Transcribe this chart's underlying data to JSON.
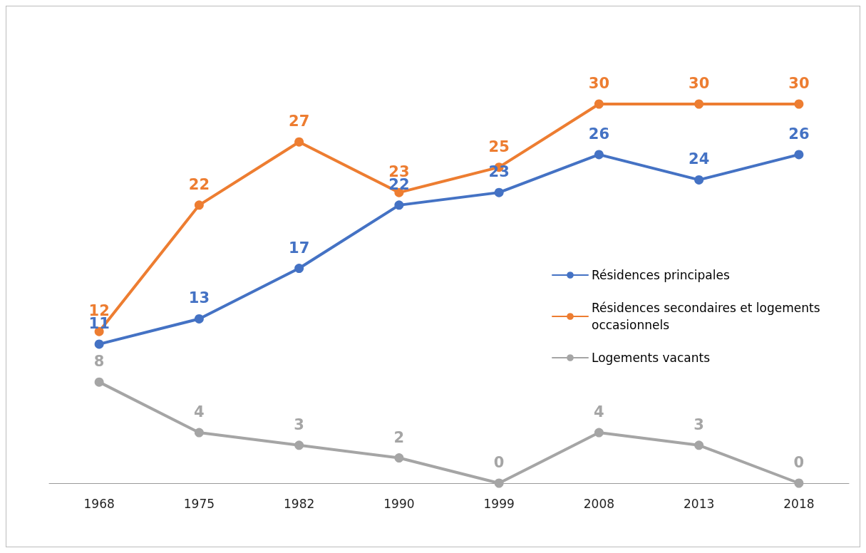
{
  "chart_data": {
    "type": "line",
    "categories": [
      "1968",
      "1975",
      "1982",
      "1990",
      "1999",
      "2008",
      "2013",
      "2018"
    ],
    "series": [
      {
        "name": "Résidences principales",
        "color": "#4472c4",
        "values": [
          11,
          13,
          17,
          22,
          23,
          26,
          24,
          26
        ]
      },
      {
        "name": "Résidences secondaires et logements occasionnels",
        "color": "#ed7d31",
        "values": [
          12,
          22,
          27,
          23,
          25,
          30,
          30,
          30
        ]
      },
      {
        "name": "Logements vacants",
        "color": "#a5a5a5",
        "values": [
          8,
          4,
          3,
          2,
          0,
          4,
          3,
          0
        ]
      }
    ],
    "data_labels": true,
    "marker": "circle",
    "line_style": "solid",
    "grid": false,
    "legend": "right"
  }
}
